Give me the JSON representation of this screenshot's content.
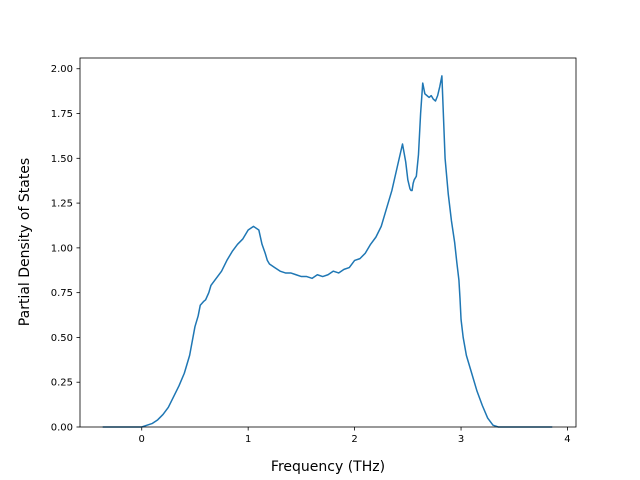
{
  "chart_data": {
    "type": "line",
    "title": "",
    "xlabel": "Frequency (THz)",
    "ylabel": "Partial Density of States",
    "xlim": [
      -0.58,
      4.08
    ],
    "ylim": [
      0.0,
      2.06
    ],
    "xticks": [
      {
        "value": 0,
        "label": "0"
      },
      {
        "value": 1,
        "label": "1"
      },
      {
        "value": 2,
        "label": "2"
      },
      {
        "value": 3,
        "label": "3"
      },
      {
        "value": 4,
        "label": "4"
      }
    ],
    "yticks": [
      {
        "value": 0.0,
        "label": "0.00"
      },
      {
        "value": 0.25,
        "label": "0.25"
      },
      {
        "value": 0.5,
        "label": "0.50"
      },
      {
        "value": 0.75,
        "label": "0.75"
      },
      {
        "value": 1.0,
        "label": "1.00"
      },
      {
        "value": 1.25,
        "label": "1.25"
      },
      {
        "value": 1.5,
        "label": "1.50"
      },
      {
        "value": 1.75,
        "label": "1.75"
      },
      {
        "value": 2.0,
        "label": "2.00"
      }
    ],
    "grid": false,
    "legend": "none",
    "colors": {
      "line": "#1f77b4",
      "axes": "#000000",
      "background": "#ffffff"
    },
    "series": [
      {
        "x": [
          -0.36,
          -0.2,
          -0.1,
          0.0,
          0.05,
          0.1,
          0.15,
          0.2,
          0.25,
          0.3,
          0.35,
          0.4,
          0.45,
          0.5,
          0.53,
          0.55,
          0.58,
          0.6,
          0.63,
          0.65,
          0.7,
          0.75,
          0.8,
          0.85,
          0.9,
          0.95,
          1.0,
          1.05,
          1.1,
          1.13,
          1.16,
          1.18,
          1.2,
          1.25,
          1.3,
          1.35,
          1.4,
          1.45,
          1.5,
          1.55,
          1.6,
          1.65,
          1.7,
          1.75,
          1.8,
          1.85,
          1.9,
          1.95,
          2.0,
          2.05,
          2.1,
          2.15,
          2.2,
          2.25,
          2.3,
          2.35,
          2.4,
          2.45,
          2.48,
          2.5,
          2.52,
          2.53,
          2.54,
          2.55,
          2.56,
          2.58,
          2.6,
          2.62,
          2.64,
          2.66,
          2.68,
          2.7,
          2.72,
          2.74,
          2.76,
          2.78,
          2.8,
          2.82,
          2.85,
          2.88,
          2.91,
          2.94,
          2.96,
          2.98,
          2.99,
          3.0,
          3.02,
          3.05,
          3.1,
          3.15,
          3.2,
          3.25,
          3.3,
          3.35,
          3.4,
          3.45,
          3.48,
          3.5,
          3.51,
          3.52,
          3.53,
          3.55,
          3.6,
          3.7,
          3.85
        ],
        "y": [
          0.0,
          0.0,
          0.0,
          0.0,
          0.01,
          0.02,
          0.04,
          0.07,
          0.11,
          0.17,
          0.23,
          0.3,
          0.4,
          0.56,
          0.62,
          0.68,
          0.7,
          0.71,
          0.75,
          0.79,
          0.83,
          0.87,
          0.93,
          0.98,
          1.02,
          1.05,
          1.1,
          1.12,
          1.1,
          1.02,
          0.97,
          0.93,
          0.91,
          0.89,
          0.87,
          0.86,
          0.86,
          0.85,
          0.84,
          0.84,
          0.83,
          0.85,
          0.84,
          0.85,
          0.87,
          0.86,
          0.88,
          0.89,
          0.93,
          0.94,
          0.97,
          1.02,
          1.06,
          1.12,
          1.22,
          1.32,
          1.45,
          1.58,
          1.48,
          1.38,
          1.33,
          1.32,
          1.32,
          1.36,
          1.38,
          1.4,
          1.52,
          1.75,
          1.92,
          1.86,
          1.85,
          1.84,
          1.85,
          1.83,
          1.82,
          1.85,
          1.9,
          1.96,
          1.5,
          1.3,
          1.15,
          1.03,
          0.92,
          0.82,
          0.72,
          0.6,
          0.5,
          0.4,
          0.3,
          0.2,
          0.12,
          0.05,
          0.01,
          0.0,
          0.0,
          0.0,
          0.0,
          0.0,
          0.0,
          0.0,
          0.0,
          0.0,
          0.0,
          0.0,
          0.0
        ]
      }
    ]
  }
}
